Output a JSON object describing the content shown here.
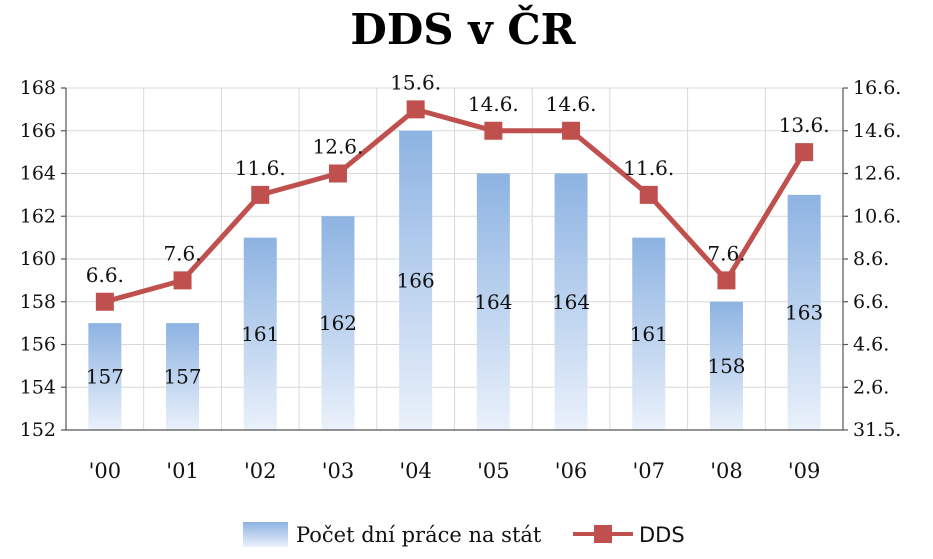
{
  "chart_data": {
    "type": "bar",
    "title": "DDS v ČR",
    "categories": [
      "'00",
      "'01",
      "'02",
      "'03",
      "'04",
      "'05",
      "'06",
      "'07",
      "'08",
      "'09"
    ],
    "series": [
      {
        "name": "Počet dní práce na stát",
        "type": "bar",
        "axis": "left",
        "values": [
          157,
          157,
          161,
          162,
          166,
          164,
          164,
          161,
          158,
          163
        ],
        "value_labels": [
          "157",
          "157",
          "161",
          "162",
          "166",
          "164",
          "164",
          "161",
          "158",
          "163"
        ],
        "color": "#8db3e2"
      },
      {
        "name": "DDS",
        "type": "line",
        "axis": "right",
        "values": [
          6.6,
          7.6,
          11.6,
          12.6,
          15.6,
          14.6,
          14.6,
          11.6,
          7.6,
          13.6
        ],
        "value_labels": [
          "6.6.",
          "7.6.",
          "11.6.",
          "12.6.",
          "15.6.",
          "14.6.",
          "14.6.",
          "11.6.",
          "7.6.",
          "13.6."
        ],
        "color": "#c0504d"
      }
    ],
    "y_left": {
      "ylim": [
        152,
        168
      ],
      "ticks": [
        "168",
        "166",
        "164",
        "162",
        "160",
        "158",
        "156",
        "154",
        "152"
      ]
    },
    "y_right": {
      "ylim": [
        0.6,
        16.6
      ],
      "ticks": [
        "16.6.",
        "14.6.",
        "12.6.",
        "10.6.",
        "8.6.",
        "6.6.",
        "4.6.",
        "2.6.",
        "31.5."
      ]
    },
    "grid": true,
    "legend": "bottom"
  }
}
